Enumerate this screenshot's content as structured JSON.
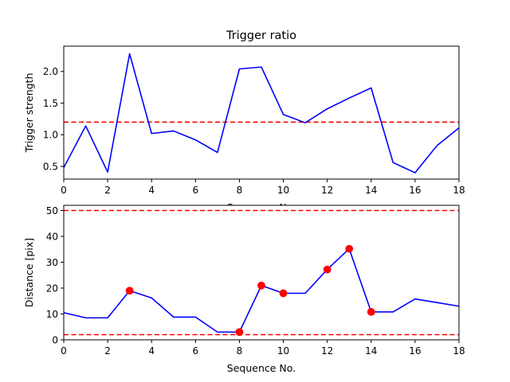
{
  "chart_data": [
    {
      "type": "line",
      "title": "Trigger ratio",
      "xlabel": "Sequence No.",
      "ylabel": "Trigger strength",
      "xlim": [
        0,
        18
      ],
      "ylim": [
        0.3,
        2.4
      ],
      "xticks": [
        0,
        2,
        4,
        6,
        8,
        10,
        12,
        14,
        16,
        18
      ],
      "xtick_labels": [
        "0",
        "2",
        "4",
        "6",
        "8",
        "10",
        "12",
        "14",
        "16",
        "18"
      ],
      "yticks": [
        0.5,
        1.0,
        1.5,
        2.0
      ],
      "ytick_labels": [
        "0.5",
        "1.0",
        "1.5",
        "2.0"
      ],
      "grid": false,
      "x": [
        0,
        1,
        2,
        3,
        4,
        5,
        6,
        7,
        8,
        9,
        10,
        11,
        12,
        13,
        14,
        15,
        16,
        17,
        18
      ],
      "series": [
        {
          "color": "#0000ff",
          "values": [
            0.48,
            1.14,
            0.41,
            2.28,
            1.02,
            1.06,
            0.92,
            0.72,
            2.04,
            2.07,
            1.32,
            1.19,
            1.41,
            1.58,
            1.74,
            0.56,
            0.4,
            0.83,
            1.11
          ]
        }
      ],
      "reference_lines": [
        {
          "y": 1.2,
          "color": "#ff0000",
          "style": "dashed"
        }
      ]
    },
    {
      "type": "line",
      "title": "",
      "xlabel": "Sequence No.",
      "ylabel": "Distance [pix]",
      "xlim": [
        0,
        18
      ],
      "ylim": [
        0,
        52
      ],
      "xticks": [
        0,
        2,
        4,
        6,
        8,
        10,
        12,
        14,
        16,
        18
      ],
      "xtick_labels": [
        "0",
        "2",
        "4",
        "6",
        "8",
        "10",
        "12",
        "14",
        "16",
        "18"
      ],
      "yticks": [
        0,
        10,
        20,
        30,
        40,
        50
      ],
      "ytick_labels": [
        "0",
        "10",
        "20",
        "30",
        "40",
        "50"
      ],
      "grid": false,
      "x": [
        0,
        1,
        2,
        3,
        4,
        5,
        6,
        7,
        8,
        9,
        10,
        11,
        12,
        13,
        14,
        15,
        16,
        17,
        18
      ],
      "series": [
        {
          "color": "#0000ff",
          "values": [
            10.5,
            8.5,
            8.5,
            19,
            16.2,
            8.8,
            8.8,
            3,
            3,
            21,
            18,
            18,
            27.2,
            35.2,
            10.8,
            10.8,
            15.8,
            14.4,
            13
          ]
        }
      ],
      "highlight_points": {
        "color": "#ff0000",
        "x": [
          3,
          8,
          9,
          10,
          12,
          13,
          14
        ],
        "y": [
          19,
          3,
          21,
          18,
          27.2,
          35.2,
          10.8
        ]
      },
      "reference_lines": [
        {
          "y": 50,
          "color": "#ff0000",
          "style": "dashed"
        },
        {
          "y": 2,
          "color": "#ff0000",
          "style": "dashed"
        }
      ]
    }
  ]
}
